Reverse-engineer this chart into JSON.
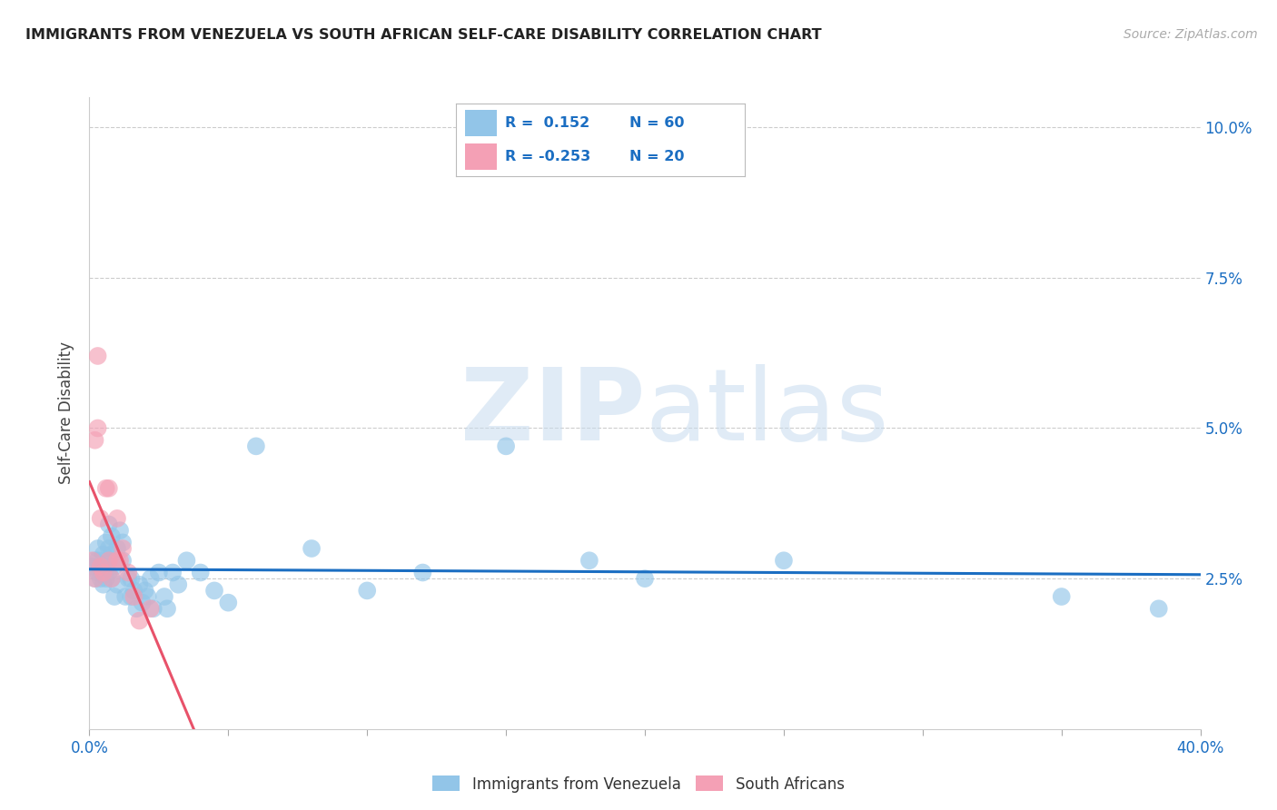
{
  "title": "IMMIGRANTS FROM VENEZUELA VS SOUTH AFRICAN SELF-CARE DISABILITY CORRELATION CHART",
  "source": "Source: ZipAtlas.com",
  "ylabel": "Self-Care Disability",
  "xlim": [
    0.0,
    0.4
  ],
  "ylim": [
    0.0,
    0.105
  ],
  "xticks": [
    0.0,
    0.05,
    0.1,
    0.15,
    0.2,
    0.25,
    0.3,
    0.35,
    0.4
  ],
  "yticks": [
    0.025,
    0.05,
    0.075,
    0.1
  ],
  "ytick_labels": [
    "2.5%",
    "5.0%",
    "7.5%",
    "10.0%"
  ],
  "r_blue": 0.152,
  "n_blue": 60,
  "r_pink": -0.253,
  "n_pink": 20,
  "blue_color": "#92C5E8",
  "pink_color": "#F4A0B5",
  "trend_blue_color": "#1B6EC2",
  "trend_pink_color": "#E8526A",
  "legend_label_blue": "Immigrants from Venezuela",
  "legend_label_pink": "South Africans",
  "blue_x": [
    0.001,
    0.002,
    0.002,
    0.003,
    0.003,
    0.003,
    0.004,
    0.004,
    0.005,
    0.005,
    0.005,
    0.005,
    0.006,
    0.006,
    0.006,
    0.007,
    0.007,
    0.007,
    0.007,
    0.008,
    0.008,
    0.008,
    0.009,
    0.009,
    0.01,
    0.01,
    0.011,
    0.012,
    0.012,
    0.013,
    0.014,
    0.015,
    0.015,
    0.016,
    0.017,
    0.018,
    0.019,
    0.02,
    0.021,
    0.022,
    0.023,
    0.025,
    0.027,
    0.028,
    0.03,
    0.032,
    0.035,
    0.04,
    0.045,
    0.05,
    0.06,
    0.08,
    0.1,
    0.12,
    0.15,
    0.18,
    0.2,
    0.25,
    0.35,
    0.385
  ],
  "blue_y": [
    0.027,
    0.025,
    0.028,
    0.026,
    0.028,
    0.03,
    0.025,
    0.027,
    0.024,
    0.026,
    0.027,
    0.029,
    0.025,
    0.027,
    0.031,
    0.026,
    0.028,
    0.03,
    0.034,
    0.025,
    0.029,
    0.032,
    0.022,
    0.027,
    0.024,
    0.03,
    0.033,
    0.028,
    0.031,
    0.022,
    0.025,
    0.022,
    0.025,
    0.023,
    0.02,
    0.024,
    0.021,
    0.023,
    0.022,
    0.025,
    0.02,
    0.026,
    0.022,
    0.02,
    0.026,
    0.024,
    0.028,
    0.026,
    0.023,
    0.021,
    0.047,
    0.03,
    0.023,
    0.026,
    0.047,
    0.028,
    0.025,
    0.028,
    0.022,
    0.02
  ],
  "pink_x": [
    0.001,
    0.002,
    0.002,
    0.003,
    0.003,
    0.004,
    0.004,
    0.005,
    0.006,
    0.007,
    0.007,
    0.008,
    0.01,
    0.01,
    0.011,
    0.012,
    0.014,
    0.016,
    0.018,
    0.022
  ],
  "pink_y": [
    0.028,
    0.025,
    0.048,
    0.05,
    0.062,
    0.035,
    0.027,
    0.026,
    0.04,
    0.028,
    0.04,
    0.025,
    0.035,
    0.028,
    0.028,
    0.03,
    0.026,
    0.022,
    0.018,
    0.02
  ],
  "watermark_zip": "ZIP",
  "watermark_atlas": "atlas",
  "background_color": "#FFFFFF",
  "grid_color": "#CCCCCC"
}
